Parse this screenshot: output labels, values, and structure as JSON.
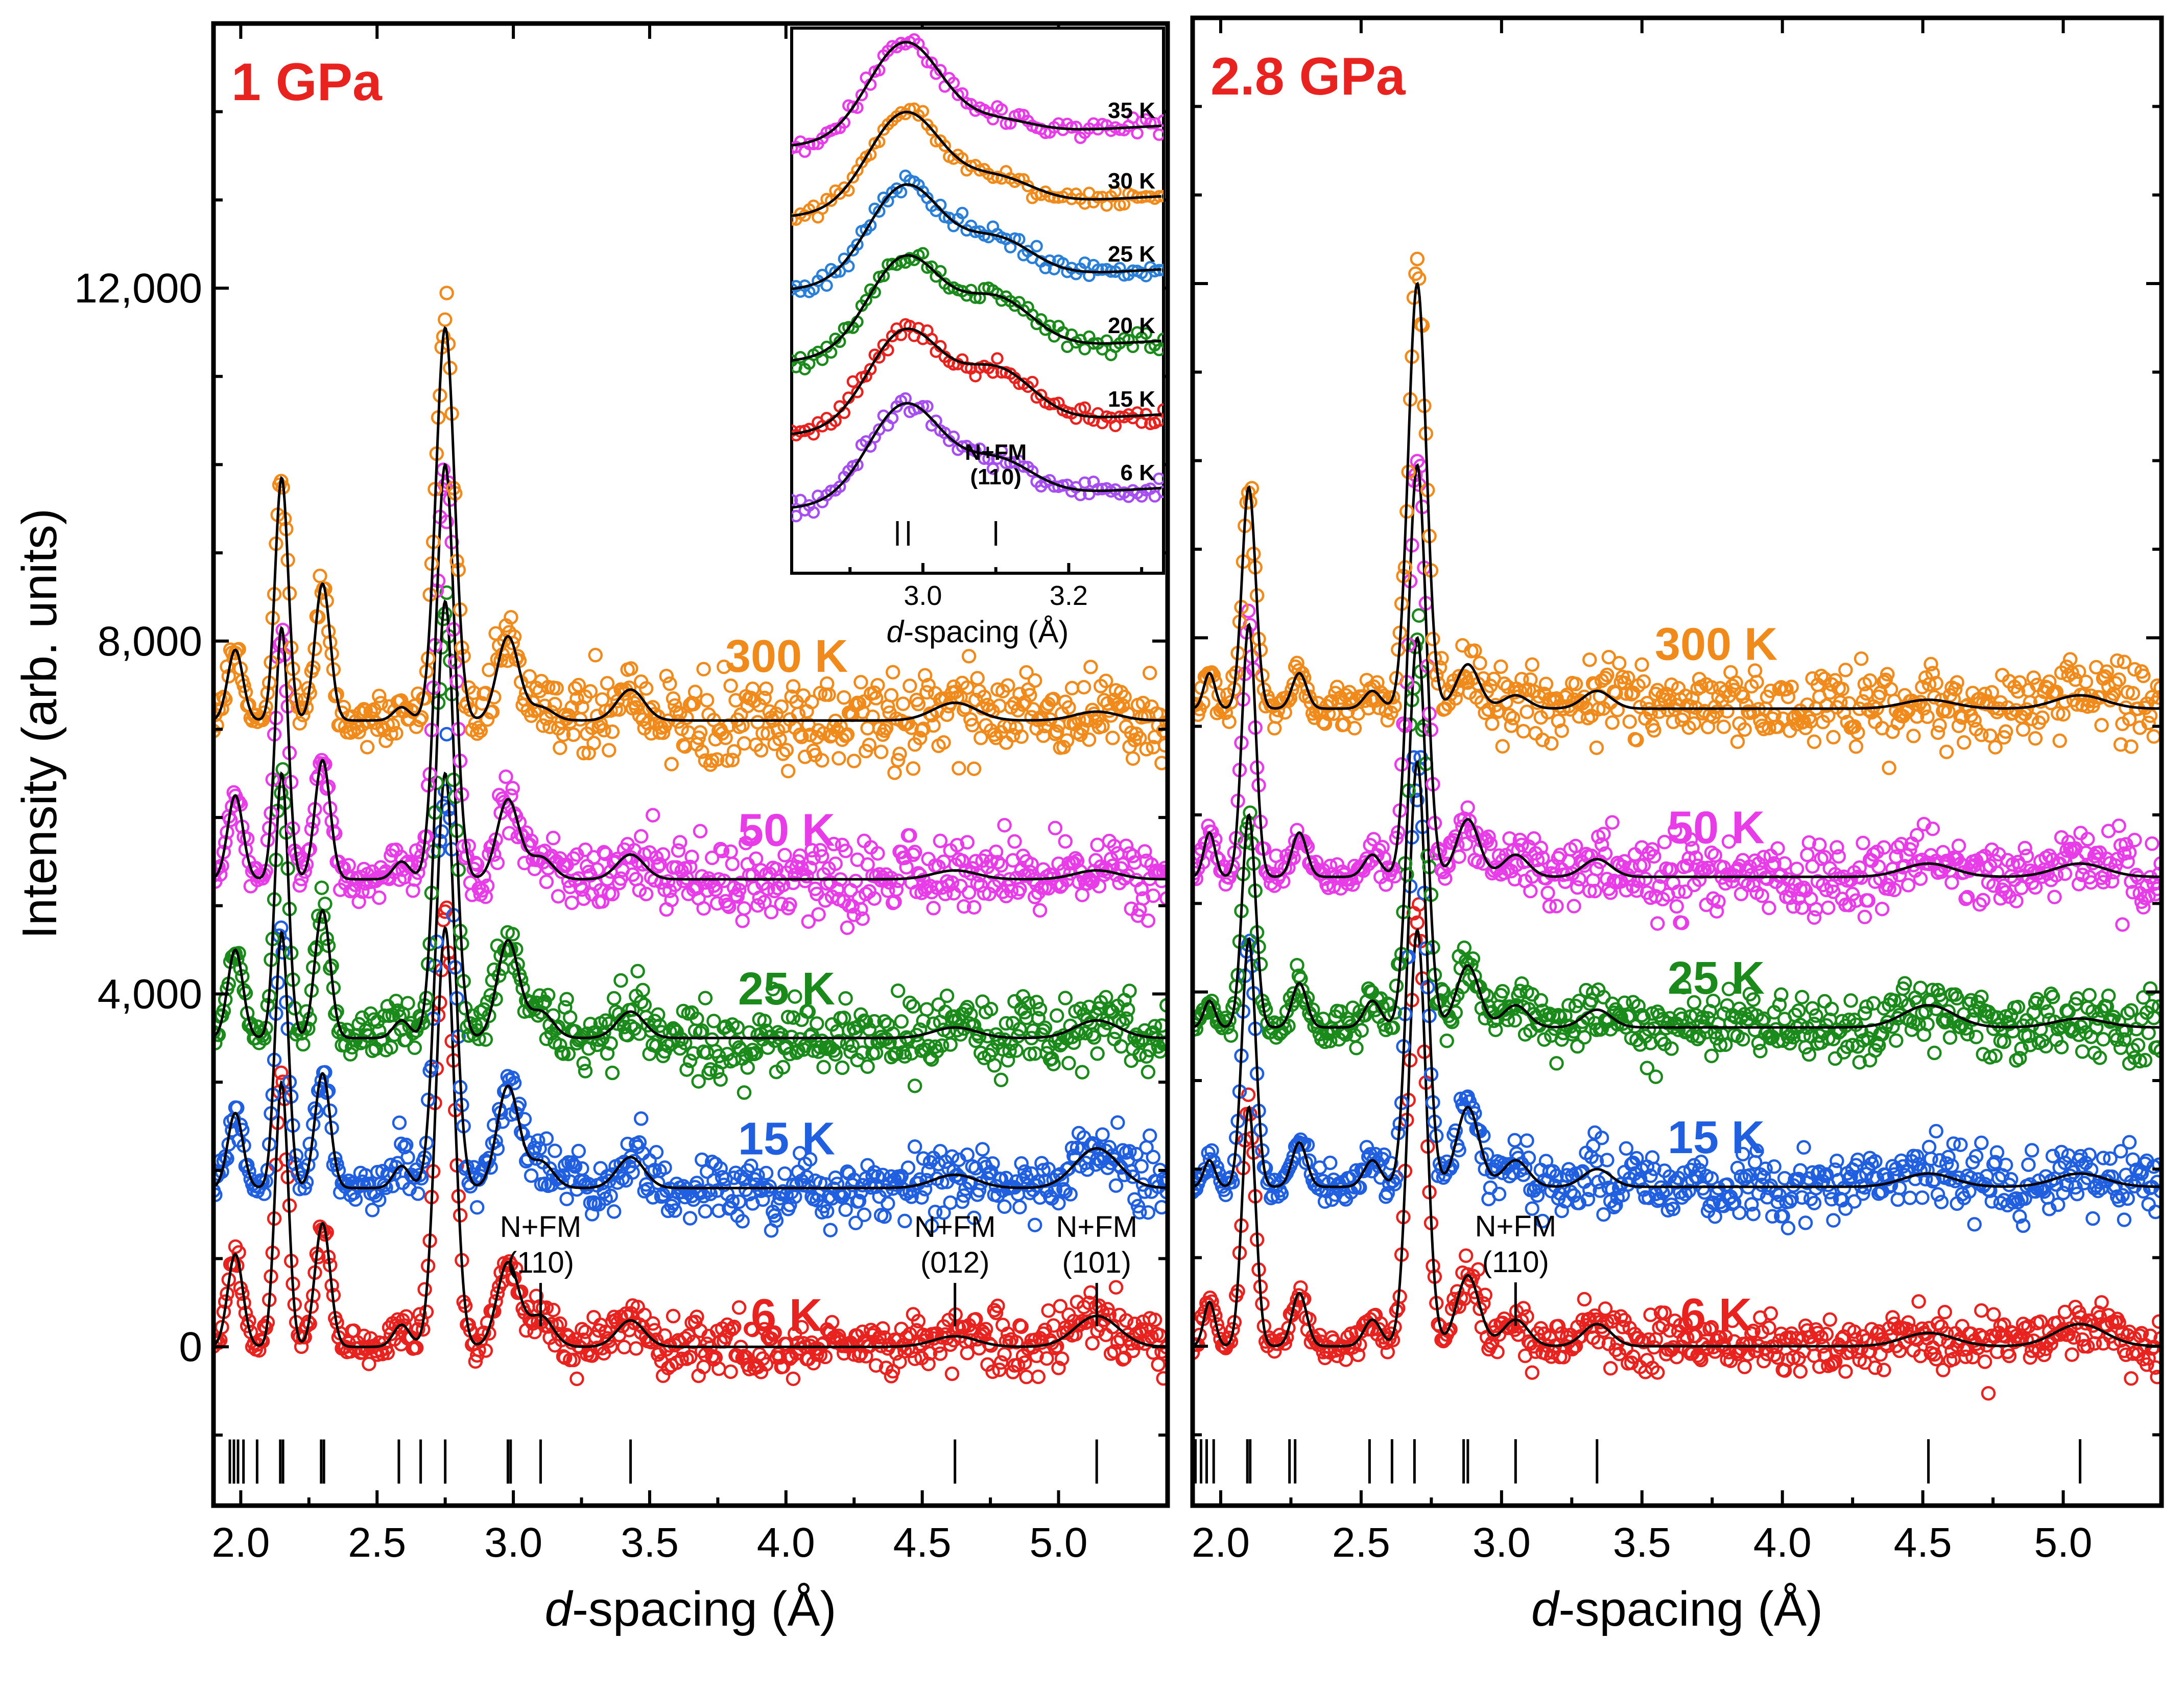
{
  "chart_data": [
    {
      "type": "line",
      "panel": "left",
      "title": "1 GPa",
      "xlabel_italic": "d",
      "xlabel_rest": "-spacing (Å)",
      "ylabel": "Intensity (arb. units)",
      "xlim": [
        1.9,
        5.4
      ],
      "ylim": [
        -1800,
        15000
      ],
      "xticks": [
        {
          "value": 2.0,
          "label": "2.0"
        },
        {
          "value": 2.5,
          "label": "2.5"
        },
        {
          "value": 3.0,
          "label": "3.0"
        },
        {
          "value": 3.5,
          "label": "3.5"
        },
        {
          "value": 4.0,
          "label": "4.0"
        },
        {
          "value": 4.5,
          "label": "4.5"
        },
        {
          "value": 5.0,
          "label": "5.0"
        }
      ],
      "yticks": [
        {
          "value": 0,
          "label": "0"
        },
        {
          "value": 4000,
          "label": "4,000"
        },
        {
          "value": 8000,
          "label": "8,000"
        },
        {
          "value": 12000,
          "label": "12,000"
        }
      ],
      "peaks": [
        {
          "d": 1.98,
          "w": 0.028
        },
        {
          "d": 2.15,
          "w": 0.024
        },
        {
          "d": 2.3,
          "w": 0.028
        },
        {
          "d": 2.59,
          "w": 0.03
        },
        {
          "d": 2.75,
          "w": 0.034
        },
        {
          "d": 2.98,
          "w": 0.04
        },
        {
          "d": 3.1,
          "w": 0.045
        },
        {
          "d": 3.43,
          "w": 0.05
        },
        {
          "d": 4.62,
          "w": 0.08
        },
        {
          "d": 5.14,
          "w": 0.08
        }
      ],
      "series": [
        {
          "name": "6 K",
          "label": "6 K",
          "color": "#e8231f",
          "offset": 0,
          "noise": 160,
          "heights": [
            1050,
            3000,
            1400,
            250,
            4750,
            950,
            350,
            300,
            120,
            350
          ]
        },
        {
          "name": "15 K",
          "label": "15 K",
          "color": "#1f5fe0",
          "offset": 1800,
          "noise": 190,
          "heights": [
            850,
            2900,
            1300,
            250,
            4700,
            1150,
            300,
            350,
            150,
            450
          ]
        },
        {
          "name": "25 K",
          "label": "25 K",
          "color": "#1a8a1a",
          "offset": 3500,
          "noise": 200,
          "heights": [
            1000,
            3000,
            1450,
            200,
            4950,
            1100,
            300,
            300,
            120,
            200
          ]
        },
        {
          "name": "50 K",
          "label": "50 K",
          "color": "#e83ce8",
          "offset": 5300,
          "noise": 210,
          "heights": [
            950,
            2850,
            1350,
            200,
            4700,
            900,
            250,
            280,
            100,
            100
          ]
        },
        {
          "name": "300 K",
          "label": "300 K",
          "color": "#f08a1a",
          "offset": 7100,
          "noise": 240,
          "heights": [
            800,
            2750,
            1550,
            150,
            4450,
            950,
            150,
            350,
            200,
            100
          ]
        }
      ],
      "reflection_ticks": [
        1.96,
        1.975,
        1.99,
        2.01,
        2.06,
        2.145,
        2.155,
        2.295,
        2.305,
        2.58,
        2.66,
        2.75,
        2.98,
        2.99,
        3.1,
        3.43,
        4.62,
        5.14
      ],
      "annotations": [
        {
          "line1": "N+FM",
          "line2": "(110)",
          "d": 3.1
        },
        {
          "line1": "N+FM",
          "line2": "(012)",
          "d": 4.62
        },
        {
          "line1": "N+FM",
          "line2": "(101)",
          "d": 5.14
        }
      ],
      "inset": {
        "xlabel_italic": "d",
        "xlabel_rest": "-spacing (Å)",
        "xlim": [
          2.82,
          3.33
        ],
        "xticks": [
          {
            "value": 3.0,
            "label": "3.0"
          },
          {
            "value": 3.2,
            "label": "3.2"
          }
        ],
        "peaks": [
          {
            "d": 2.975,
            "w": 0.05
          },
          {
            "d": 3.1,
            "w": 0.05
          }
        ],
        "series": [
          {
            "name": "6 K",
            "label": "6 K",
            "color": "#a64ef0",
            "heights": [
              1.0,
              0.38
            ]
          },
          {
            "name": "15 K",
            "label": "15 K",
            "color": "#e8231f",
            "heights": [
              1.0,
              0.55
            ]
          },
          {
            "name": "20 K",
            "label": "20 K",
            "color": "#1a8a1a",
            "heights": [
              1.0,
              0.52
            ]
          },
          {
            "name": "25 K",
            "label": "25 K",
            "color": "#2a80d8",
            "heights": [
              1.0,
              0.4
            ]
          },
          {
            "name": "30 K",
            "label": "30 K",
            "color": "#f08a1a",
            "heights": [
              1.0,
              0.28
            ]
          },
          {
            "name": "35 K",
            "label": "35 K",
            "color": "#e83ce8",
            "heights": [
              1.0,
              0.15
            ]
          }
        ],
        "reflection_ticks": [
          2.965,
          2.98,
          3.1
        ],
        "annotation": {
          "line1": "N+FM",
          "line2": "(110)"
        }
      }
    },
    {
      "type": "line",
      "panel": "right",
      "title": "2.8 GPa",
      "xlabel_italic": "d",
      "xlabel_rest": "-spacing (Å)",
      "xlim": [
        1.9,
        5.35
      ],
      "ylim": [
        -1800,
        15000
      ],
      "xticks": [
        {
          "value": 2.0,
          "label": "2.0"
        },
        {
          "value": 2.5,
          "label": "2.5"
        },
        {
          "value": 3.0,
          "label": "3.0"
        },
        {
          "value": 3.5,
          "label": "3.5"
        },
        {
          "value": 4.0,
          "label": "4.0"
        },
        {
          "value": 4.5,
          "label": "4.5"
        },
        {
          "value": 5.0,
          "label": "5.0"
        }
      ],
      "peaks": [
        {
          "d": 1.96,
          "w": 0.02
        },
        {
          "d": 2.1,
          "w": 0.024
        },
        {
          "d": 2.28,
          "w": 0.026
        },
        {
          "d": 2.54,
          "w": 0.03
        },
        {
          "d": 2.7,
          "w": 0.032
        },
        {
          "d": 2.88,
          "w": 0.04
        },
        {
          "d": 3.05,
          "w": 0.045
        },
        {
          "d": 3.34,
          "w": 0.05
        },
        {
          "d": 4.52,
          "w": 0.09
        },
        {
          "d": 5.06,
          "w": 0.09
        }
      ],
      "series": [
        {
          "name": "6 K",
          "label": "6 K",
          "color": "#e8231f",
          "offset": 0,
          "noise": 160,
          "heights": [
            500,
            2700,
            600,
            300,
            4700,
            800,
            300,
            250,
            150,
            250
          ]
        },
        {
          "name": "15 K",
          "label": "15 K",
          "color": "#1f5fe0",
          "offset": 1800,
          "noise": 190,
          "heights": [
            300,
            2800,
            500,
            300,
            4800,
            900,
            300,
            200,
            150,
            150
          ]
        },
        {
          "name": "25 K",
          "label": "25 K",
          "color": "#1a8a1a",
          "offset": 3600,
          "noise": 200,
          "heights": [
            300,
            2400,
            500,
            300,
            4400,
            700,
            250,
            200,
            250,
            100
          ]
        },
        {
          "name": "50 K",
          "label": "50 K",
          "color": "#e83ce8",
          "offset": 5300,
          "noise": 210,
          "heights": [
            500,
            2850,
            500,
            250,
            4650,
            650,
            250,
            200,
            150,
            150
          ]
        },
        {
          "name": "300 K",
          "label": "300 K",
          "color": "#f08a1a",
          "offset": 7200,
          "noise": 230,
          "heights": [
            400,
            2500,
            400,
            200,
            4800,
            500,
            150,
            200,
            100,
            150
          ]
        }
      ],
      "reflection_ticks": [
        1.91,
        1.93,
        1.95,
        1.975,
        2.095,
        2.105,
        2.245,
        2.265,
        2.53,
        2.61,
        2.69,
        2.865,
        2.88,
        3.05,
        3.34,
        4.52,
        5.06
      ],
      "annotations": [
        {
          "line1": "N+FM",
          "line2": "(110)",
          "d": 3.05
        }
      ]
    }
  ]
}
